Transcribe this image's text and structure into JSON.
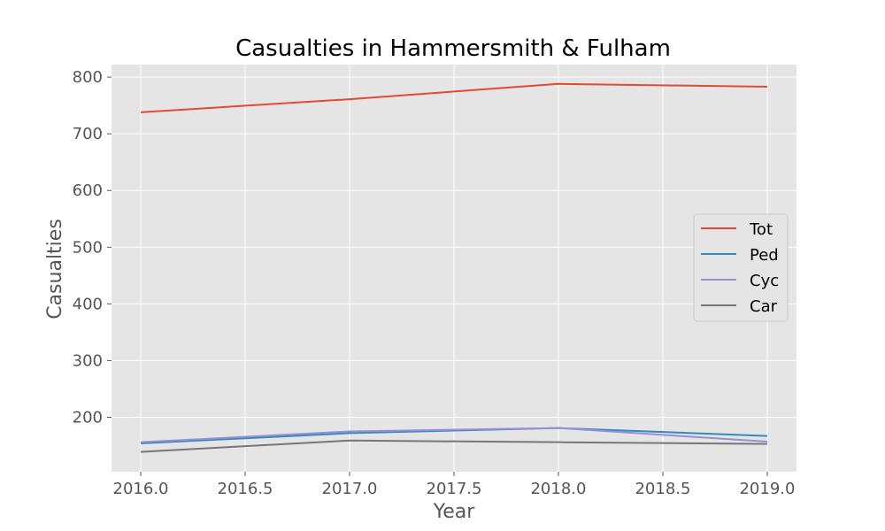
{
  "chart_data": {
    "type": "line",
    "title": "Casualties in Hammersmith & Fulham",
    "xlabel": "Year",
    "ylabel": "Casualties",
    "x": [
      2016,
      2017,
      2018,
      2019
    ],
    "xlim": [
      2015.86,
      2019.14
    ],
    "ylim": [
      104,
      822
    ],
    "xticks": [
      2016.0,
      2016.5,
      2017.0,
      2017.5,
      2018.0,
      2018.5,
      2019.0
    ],
    "xtick_labels": [
      "2016.0",
      "2016.5",
      "2017.0",
      "2017.5",
      "2018.0",
      "2018.5",
      "2019.0"
    ],
    "yticks": [
      200,
      300,
      400,
      500,
      600,
      700,
      800
    ],
    "ytick_labels": [
      "200",
      "300",
      "400",
      "500",
      "600",
      "700",
      "800"
    ],
    "grid": true,
    "legend_position": "center-right",
    "series": [
      {
        "name": "Tot",
        "color": "#E24A33",
        "values": [
          738,
          761,
          788,
          783
        ]
      },
      {
        "name": "Ped",
        "color": "#348ABD",
        "values": [
          154,
          172,
          181,
          167
        ]
      },
      {
        "name": "Cyc",
        "color": "#988ED5",
        "values": [
          156,
          175,
          181,
          157
        ]
      },
      {
        "name": "Car",
        "color": "#777777",
        "values": [
          139,
          159,
          156,
          153
        ]
      }
    ]
  }
}
